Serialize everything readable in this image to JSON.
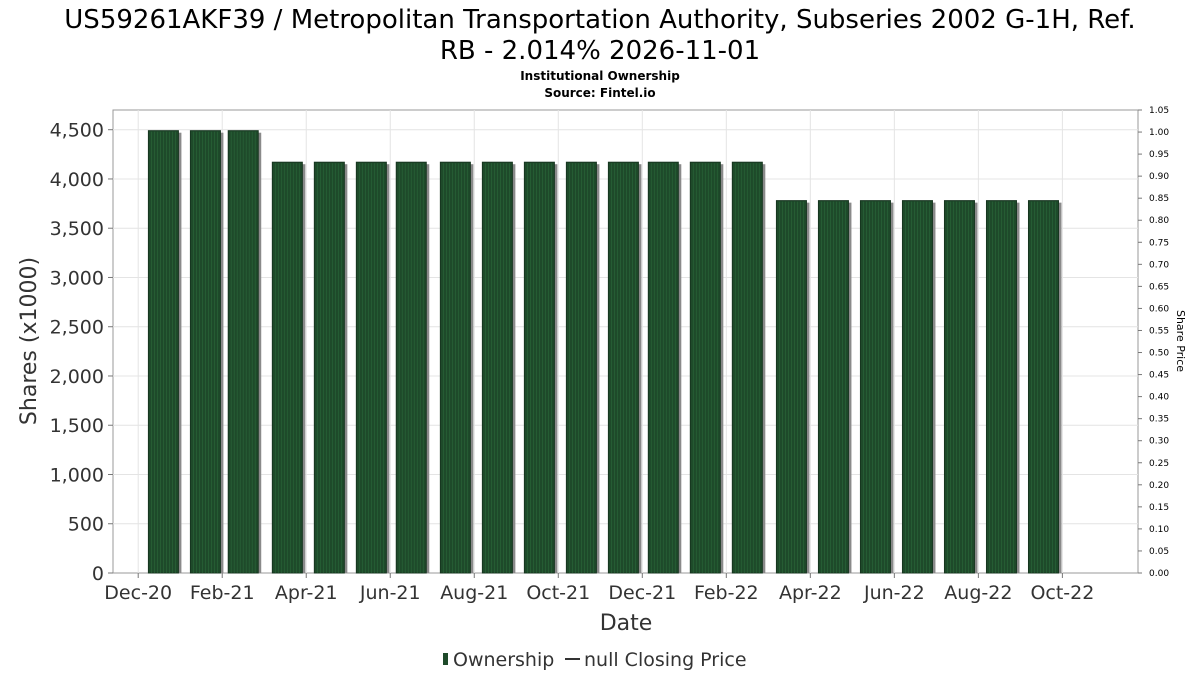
{
  "chart_data": {
    "type": "bar",
    "title_line1": "US59261AKF39 / Metropolitan Transportation Authority, Subseries 2002 G-1H, Ref.",
    "title_line2": "RB - 2.014% 2026-11-01",
    "subtitle": "Institutional Ownership",
    "source": "Source: Fintel.io",
    "xlabel": "Date",
    "ylabel": "Shares (x1000)",
    "y2label": "Share Price",
    "ylim": [
      0,
      4700
    ],
    "y2lim": [
      0,
      1.05
    ],
    "y_ticks": [
      "0",
      "500",
      "1,000",
      "1,500",
      "2,000",
      "2,500",
      "3,000",
      "3,500",
      "4,000",
      "4,500"
    ],
    "y_tick_values": [
      0,
      500,
      1000,
      1500,
      2000,
      2500,
      3000,
      3500,
      4000,
      4500
    ],
    "y2_ticks": [
      "0.00",
      "0.05",
      "0.10",
      "0.15",
      "0.20",
      "0.25",
      "0.30",
      "0.35",
      "0.40",
      "0.45",
      "0.50",
      "0.55",
      "0.60",
      "0.65",
      "0.70",
      "0.75",
      "0.80",
      "0.85",
      "0.90",
      "0.95",
      "1.00",
      "1.05"
    ],
    "x_ticks": [
      "Dec-20",
      "Feb-21",
      "Apr-21",
      "Jun-21",
      "Aug-21",
      "Oct-21",
      "Dec-21",
      "Feb-22",
      "Apr-22",
      "Jun-22",
      "Aug-22",
      "Oct-22"
    ],
    "x_range_months": [
      -0.6,
      23.8
    ],
    "grid": true,
    "series": [
      {
        "name": "Ownership",
        "color": "#1e4a2a",
        "month_offsets": [
          0.6,
          1.6,
          2.5,
          3.55,
          4.55,
          5.55,
          6.5,
          7.55,
          8.55,
          9.55,
          10.55,
          11.55,
          12.5,
          13.5,
          14.5,
          15.55,
          16.55,
          17.55,
          18.55,
          19.55,
          20.55,
          21.55
        ],
        "values": [
          4490,
          4490,
          4490,
          4170,
          4170,
          4170,
          4170,
          4170,
          4170,
          4170,
          4170,
          4170,
          4170,
          4170,
          4170,
          3780,
          3780,
          3780,
          3780,
          3780,
          3780,
          3780
        ]
      }
    ],
    "legend": [
      {
        "label": "Ownership",
        "marker": "bar"
      },
      {
        "label": "null Closing Price",
        "marker": "line"
      }
    ]
  }
}
